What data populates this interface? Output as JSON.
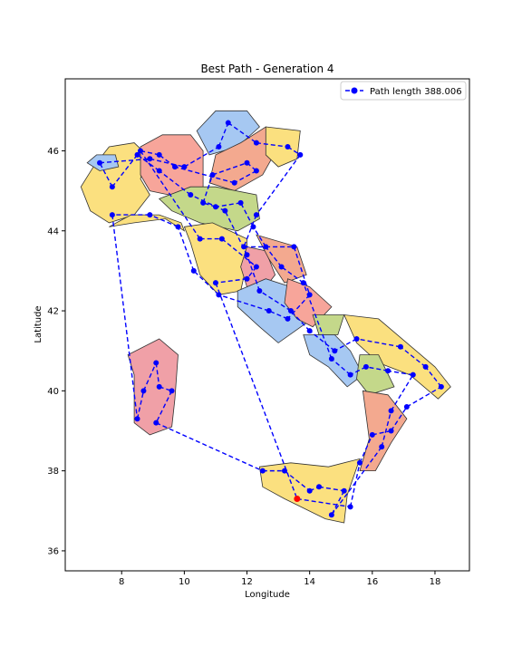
{
  "chart_data": {
    "type": "line",
    "title": "Best Path - Generation 4",
    "xlabel": "Longitude",
    "ylabel": "Latitude",
    "xlim": [
      6.2,
      19.1
    ],
    "ylim": [
      35.5,
      47.8
    ],
    "xticks": [
      8,
      10,
      12,
      14,
      16,
      18
    ],
    "yticks": [
      36,
      38,
      40,
      42,
      44,
      46
    ],
    "grid": false,
    "legend_position": "top-right",
    "background": "map of Italy with colored regions",
    "series": [
      {
        "name": "Path length 388.006",
        "color": "#0000ff",
        "linestyle": "dashed",
        "marker": "circle",
        "points": [
          [
            13.6,
            37.3
          ],
          [
            15.3,
            37.1
          ],
          [
            15.6,
            38.2
          ],
          [
            16.0,
            38.9
          ],
          [
            16.6,
            39.0
          ],
          [
            17.1,
            39.6
          ],
          [
            18.2,
            40.1
          ],
          [
            17.7,
            40.6
          ],
          [
            16.9,
            41.1
          ],
          [
            15.5,
            41.3
          ],
          [
            14.8,
            41.0
          ],
          [
            14.0,
            41.5
          ],
          [
            13.4,
            42.0
          ],
          [
            12.4,
            42.5
          ],
          [
            12.0,
            43.4
          ],
          [
            11.3,
            44.5
          ],
          [
            10.2,
            44.9
          ],
          [
            9.2,
            45.5
          ],
          [
            8.5,
            45.9
          ],
          [
            7.7,
            45.1
          ],
          [
            7.3,
            45.7
          ],
          [
            8.9,
            45.8
          ],
          [
            10.0,
            45.6
          ],
          [
            11.1,
            46.1
          ],
          [
            11.4,
            46.7
          ],
          [
            12.3,
            46.2
          ],
          [
            13.3,
            46.1
          ],
          [
            13.7,
            45.9
          ],
          [
            12.3,
            44.4
          ],
          [
            11.9,
            43.6
          ],
          [
            13.5,
            43.6
          ],
          [
            14.0,
            42.4
          ],
          [
            13.3,
            41.8
          ],
          [
            12.7,
            42.0
          ],
          [
            11.1,
            42.4
          ],
          [
            10.3,
            43.0
          ],
          [
            9.8,
            44.1
          ],
          [
            8.9,
            44.4
          ],
          [
            7.7,
            44.4
          ],
          [
            8.5,
            39.3
          ],
          [
            8.7,
            40.0
          ],
          [
            9.1,
            40.7
          ],
          [
            9.2,
            40.1
          ],
          [
            9.6,
            40.0
          ],
          [
            9.1,
            39.2
          ],
          [
            12.5,
            38.0
          ],
          [
            13.2,
            38.0
          ],
          [
            14.0,
            37.5
          ],
          [
            14.3,
            37.6
          ],
          [
            15.1,
            37.5
          ],
          [
            14.7,
            36.9
          ],
          [
            16.3,
            38.6
          ],
          [
            16.6,
            39.5
          ],
          [
            17.3,
            40.4
          ],
          [
            16.5,
            40.5
          ],
          [
            15.8,
            40.6
          ],
          [
            15.3,
            40.4
          ],
          [
            14.7,
            40.8
          ],
          [
            13.8,
            42.7
          ],
          [
            13.1,
            43.1
          ],
          [
            12.6,
            43.6
          ],
          [
            12.2,
            44.1
          ],
          [
            11.8,
            44.7
          ],
          [
            11.0,
            44.6
          ],
          [
            10.6,
            44.7
          ],
          [
            10.9,
            45.4
          ],
          [
            12.0,
            45.7
          ],
          [
            12.3,
            45.5
          ],
          [
            11.6,
            45.2
          ],
          [
            9.7,
            45.6
          ],
          [
            9.2,
            45.9
          ],
          [
            8.6,
            46.0
          ],
          [
            10.5,
            43.8
          ],
          [
            11.2,
            43.8
          ],
          [
            12.3,
            43.1
          ],
          [
            12.0,
            42.8
          ],
          [
            11.0,
            42.7
          ],
          [
            13.6,
            37.3
          ]
        ]
      }
    ],
    "highlight_point": {
      "x": 13.6,
      "y": 37.3,
      "color": "#ff0000"
    }
  },
  "colors": {
    "path": "#0000ff",
    "start_marker": "#ff0000",
    "region_palette": [
      "#a6c8f2",
      "#f7a59a",
      "#fbe07f",
      "#c4d88a",
      "#f3a98f",
      "#f0a0a7"
    ]
  }
}
